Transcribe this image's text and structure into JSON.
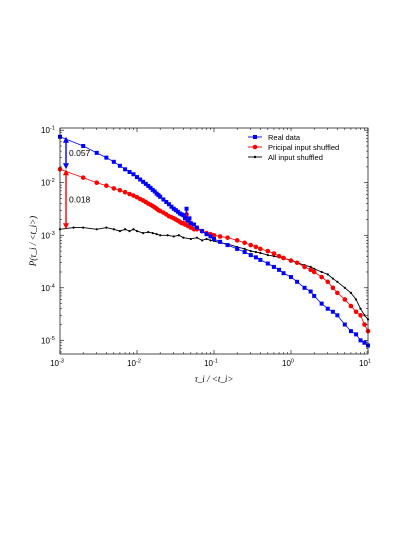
{
  "chart_data": {
    "type": "scatter",
    "title": "",
    "xlabel": "τ_i / <t_i>",
    "ylabel": "P(τ_i / <t_i>)",
    "x_scale": "log",
    "y_scale": "log",
    "xlim": [
      0.001,
      10
    ],
    "ylim": [
      5.5e-06,
      0.11
    ],
    "x_ticks": [
      {
        "base": "10",
        "exp": "-3",
        "value": 0.001
      },
      {
        "base": "10",
        "exp": "-2",
        "value": 0.01
      },
      {
        "base": "10",
        "exp": "-1",
        "value": 0.1
      },
      {
        "base": "10",
        "exp": "0",
        "value": 1
      },
      {
        "base": "10",
        "exp": "1",
        "value": 10
      }
    ],
    "y_ticks": [
      {
        "base": "10",
        "exp": "-1",
        "value": 0.1
      },
      {
        "base": "10",
        "exp": "-2",
        "value": 0.01
      },
      {
        "base": "10",
        "exp": "-3",
        "value": 0.001
      },
      {
        "base": "10",
        "exp": "-4",
        "value": 0.0001
      },
      {
        "base": "10",
        "exp": "-5",
        "value": 1e-05
      }
    ],
    "legend_position": "top-right",
    "grid": false,
    "series": [
      {
        "name": "Real data",
        "color": "#0000ff",
        "marker": "square",
        "x": [
          0.001,
          0.002,
          0.003,
          0.004,
          0.005,
          0.006,
          0.007,
          0.008,
          0.009,
          0.01,
          0.011,
          0.012,
          0.013,
          0.014,
          0.015,
          0.016,
          0.017,
          0.018,
          0.019,
          0.02,
          0.022,
          0.024,
          0.026,
          0.028,
          0.03,
          0.032,
          0.034,
          0.036,
          0.038,
          0.04,
          0.042,
          0.044,
          0.046,
          0.048,
          0.05,
          0.055,
          0.06,
          0.07,
          0.08,
          0.09,
          0.1,
          0.12,
          0.15,
          0.2,
          0.25,
          0.3,
          0.35,
          0.4,
          0.5,
          0.6,
          0.7,
          0.8,
          1.0,
          1.2,
          1.5,
          1.8,
          2.0,
          2.5,
          3.0,
          3.5,
          4.0,
          5.0,
          6.0,
          7.0,
          8.0,
          9.0,
          10.0
        ],
        "y": [
          0.075,
          0.05,
          0.037,
          0.03,
          0.025,
          0.021,
          0.018,
          0.016,
          0.0145,
          0.0128,
          0.0115,
          0.0104,
          0.0095,
          0.0087,
          0.008,
          0.0073,
          0.0068,
          0.0062,
          0.0058,
          0.0054,
          0.0048,
          0.0043,
          0.0039,
          0.0035,
          0.0032,
          0.003,
          0.0028,
          0.0026,
          0.0025,
          0.0024,
          0.0021,
          0.0032,
          0.0019,
          0.0021,
          0.0017,
          0.0016,
          0.0014,
          0.0012,
          0.00105,
          0.00095,
          0.00085,
          0.00075,
          0.00065,
          0.00055,
          0.00048,
          0.00042,
          0.00038,
          0.00034,
          0.00029,
          0.00025,
          0.00022,
          0.00019,
          0.00016,
          0.00013,
          0.0001,
          8.5e-05,
          7e-05,
          5e-05,
          4e-05,
          3.5e-05,
          3e-05,
          2e-05,
          1.5e-05,
          1.3e-05,
          1e-05,
          9e-06,
          8e-06
        ]
      },
      {
        "name": "Pricipal input shuffled",
        "color": "#ff0000",
        "marker": "circle",
        "x": [
          0.001,
          0.002,
          0.003,
          0.004,
          0.005,
          0.006,
          0.007,
          0.008,
          0.009,
          0.01,
          0.011,
          0.012,
          0.013,
          0.014,
          0.015,
          0.016,
          0.017,
          0.018,
          0.019,
          0.02,
          0.022,
          0.024,
          0.026,
          0.028,
          0.03,
          0.032,
          0.034,
          0.036,
          0.038,
          0.04,
          0.042,
          0.044,
          0.046,
          0.048,
          0.05,
          0.055,
          0.06,
          0.07,
          0.08,
          0.09,
          0.1,
          0.12,
          0.15,
          0.2,
          0.25,
          0.3,
          0.35,
          0.4,
          0.5,
          0.6,
          0.7,
          0.8,
          1.0,
          1.2,
          1.5,
          1.8,
          2.0,
          2.5,
          3.0,
          3.5,
          4.0,
          5.0,
          6.0,
          7.0,
          8.0,
          9.0,
          10.0
        ],
        "y": [
          0.018,
          0.0125,
          0.01,
          0.0088,
          0.0078,
          0.0072,
          0.0066,
          0.0061,
          0.0057,
          0.0053,
          0.0049,
          0.0046,
          0.0043,
          0.004,
          0.0038,
          0.0036,
          0.0034,
          0.0032,
          0.003,
          0.0029,
          0.0027,
          0.0025,
          0.0023,
          0.0022,
          0.0021,
          0.002,
          0.0019,
          0.0018,
          0.0017,
          0.0017,
          0.0016,
          0.0025,
          0.0015,
          0.0016,
          0.0014,
          0.0013,
          0.0013,
          0.0012,
          0.0011,
          0.00105,
          0.001,
          0.00095,
          0.0009,
          0.0008,
          0.00072,
          0.00065,
          0.0006,
          0.00055,
          0.0005,
          0.00045,
          0.0004,
          0.00037,
          0.00033,
          0.0003,
          0.00025,
          0.00022,
          0.0002,
          0.00016,
          0.00013,
          0.0001,
          8e-05,
          6e-05,
          4.5e-05,
          3.5e-05,
          3e-05,
          2e-05,
          1.5e-05
        ]
      },
      {
        "name": "All input shuffled",
        "color": "#000000",
        "marker": "dot",
        "x": [
          0.001,
          0.0015,
          0.002,
          0.003,
          0.004,
          0.005,
          0.006,
          0.007,
          0.008,
          0.009,
          0.01,
          0.012,
          0.014,
          0.016,
          0.018,
          0.02,
          0.025,
          0.03,
          0.035,
          0.04,
          0.05,
          0.06,
          0.07,
          0.08,
          0.09,
          0.1,
          0.12,
          0.15,
          0.2,
          0.25,
          0.3,
          0.35,
          0.4,
          0.5,
          0.6,
          0.7,
          0.8,
          1.0,
          1.2,
          1.5,
          1.8,
          2.0,
          2.5,
          3.0,
          3.5,
          4.0,
          5.0,
          6.0,
          7.0,
          8.0,
          9.0,
          10.0
        ],
        "y": [
          0.0013,
          0.0014,
          0.0014,
          0.0013,
          0.0014,
          0.0013,
          0.0012,
          0.0013,
          0.0012,
          0.0013,
          0.0012,
          0.0011,
          0.00115,
          0.0011,
          0.00105,
          0.001,
          0.001,
          0.00095,
          0.001,
          0.0009,
          0.00085,
          0.0009,
          0.0008,
          0.00085,
          0.0008,
          0.00078,
          0.00072,
          0.00068,
          0.0006,
          0.00055,
          0.0005,
          0.00048,
          0.00046,
          0.00042,
          0.0004,
          0.00038,
          0.00036,
          0.00034,
          0.0003,
          0.00027,
          0.00025,
          0.00023,
          0.0002,
          0.00018,
          0.00015,
          0.00013,
          0.0001,
          8e-05,
          6e-05,
          4e-05,
          3e-05,
          2.5e-05
        ]
      }
    ],
    "annotations": [
      {
        "text": "0.057",
        "color": "#0000ff",
        "from": 0.018,
        "to": 0.075
      },
      {
        "text": "0.018",
        "color": "#ff0000",
        "from": 0.0013,
        "to": 0.018
      }
    ]
  }
}
